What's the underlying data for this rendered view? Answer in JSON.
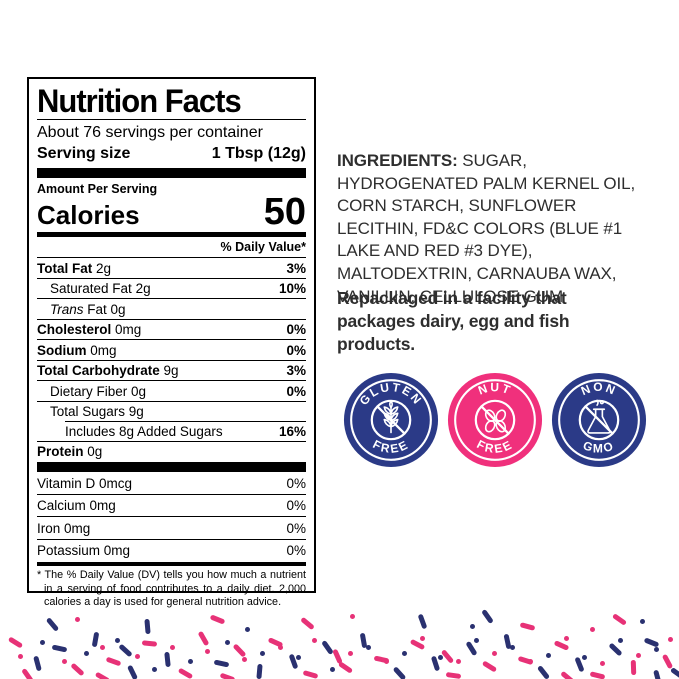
{
  "label": {
    "title": "Nutrition Facts",
    "servings_per_container": "About 76 servings per container",
    "serving_size_label": "Serving size",
    "serving_size_value": "1 Tbsp (12g)",
    "amount_per_serving": "Amount Per Serving",
    "calories_label": "Calories",
    "calories_value": "50",
    "daily_value_header": "% Daily Value*",
    "rows": [
      {
        "n": "Total Fat",
        "a": "2g",
        "d": "3%",
        "b": true,
        "db": true,
        "i": 0
      },
      {
        "n": "Saturated Fat",
        "a": "2g",
        "d": "10%",
        "b": false,
        "db": true,
        "i": 1
      },
      {
        "it": "Trans",
        "n": " Fat",
        "a": "0g",
        "d": "",
        "b": false,
        "db": false,
        "i": 1
      },
      {
        "n": "Cholesterol",
        "a": "0mg",
        "d": "0%",
        "b": true,
        "db": true,
        "i": 0
      },
      {
        "n": "Sodium",
        "a": "0mg",
        "d": "0%",
        "b": true,
        "db": true,
        "i": 0
      },
      {
        "n": "Total Carbohydrate",
        "a": "9g",
        "d": "3%",
        "b": true,
        "db": true,
        "i": 0
      },
      {
        "n": "Dietary Fiber",
        "a": "0g",
        "d": "0%",
        "b": false,
        "db": true,
        "i": 1
      },
      {
        "n": "Total Sugars",
        "a": "9g",
        "d": "",
        "b": false,
        "db": false,
        "i": 1
      },
      {
        "n": "Includes 8g Added Sugars",
        "a": "",
        "d": "16%",
        "b": false,
        "db": true,
        "i": 2,
        "inset": true
      },
      {
        "n": "Protein",
        "a": "0g",
        "d": "",
        "b": true,
        "db": false,
        "i": 0
      }
    ],
    "vitamin_rows": [
      {
        "n": "Vitamin D",
        "a": "0mcg",
        "d": "0%"
      },
      {
        "n": "Calcium",
        "a": "0mg",
        "d": "0%"
      },
      {
        "n": "Iron",
        "a": "0mg",
        "d": "0%"
      },
      {
        "n": "Potassium",
        "a": "0mg",
        "d": "0%"
      }
    ],
    "footnote": "* The % Daily Value (DV) tells you how much a nutrient in a serving of food contributes to a daily diet. 2,000 calories a day is used for general nutrition advice."
  },
  "ingredients": {
    "label": "INGREDIENTS:",
    "text": " SUGAR, HYDROGENATED PALM KERNEL OIL, CORN STARCH, SUNFLOWER LECITHIN, FD&C COLORS (BLUE #1 LAKE AND RED #3 DYE), MALTODEXTRIN, CARNAUBA WAX, VANILLIN, CELLULOSE GUM",
    "repackaged": "Repackaged in a facility that packages dairy, egg and fish products."
  },
  "badges": [
    {
      "name": "gluten-free",
      "top": "GLUTEN",
      "bottom": "FREE",
      "color": "#2b3a87"
    },
    {
      "name": "nut-free",
      "top": "NUT",
      "bottom": "FREE",
      "color": "#f0307c"
    },
    {
      "name": "non-gmo",
      "top": "NON",
      "bottom": "GMO",
      "color": "#2b3a87"
    }
  ],
  "decor": {
    "colors": [
      "#e73277",
      "#2a3170"
    ],
    "sprinkles": {
      "bars": [
        [
          8,
          640,
          32,
          0
        ],
        [
          30,
          661,
          75,
          1
        ],
        [
          52,
          646,
          12,
          1
        ],
        [
          70,
          667,
          42,
          0
        ],
        [
          88,
          637,
          100,
          1
        ],
        [
          106,
          659,
          20,
          0
        ],
        [
          125,
          670,
          64,
          1
        ],
        [
          142,
          641,
          6,
          0
        ],
        [
          160,
          657,
          84,
          1
        ],
        [
          178,
          671,
          30,
          0
        ],
        [
          196,
          636,
          60,
          0
        ],
        [
          214,
          661,
          12,
          1
        ],
        [
          232,
          648,
          46,
          0
        ],
        [
          252,
          669,
          95,
          1
        ],
        [
          268,
          640,
          24,
          0
        ],
        [
          286,
          659,
          70,
          1
        ],
        [
          303,
          672,
          16,
          0
        ],
        [
          320,
          645,
          55,
          1
        ],
        [
          338,
          665,
          34,
          0
        ],
        [
          356,
          638,
          80,
          1
        ],
        [
          374,
          657,
          12,
          0
        ],
        [
          392,
          671,
          48,
          1
        ],
        [
          410,
          642,
          28,
          0
        ],
        [
          428,
          661,
          72,
          1
        ],
        [
          446,
          673,
          8,
          0
        ],
        [
          464,
          646,
          58,
          1
        ],
        [
          482,
          664,
          32,
          0
        ],
        [
          500,
          639,
          78,
          1
        ],
        [
          518,
          658,
          18,
          0
        ],
        [
          536,
          670,
          52,
          1
        ],
        [
          554,
          643,
          24,
          0
        ],
        [
          572,
          662,
          68,
          1
        ],
        [
          590,
          673,
          14,
          0
        ],
        [
          608,
          647,
          44,
          1
        ],
        [
          626,
          665,
          88,
          0
        ],
        [
          644,
          640,
          22,
          1
        ],
        [
          660,
          659,
          62,
          0
        ],
        [
          670,
          671,
          36,
          1
        ],
        [
          20,
          673,
          55,
          0
        ],
        [
          118,
          648,
          42,
          1
        ],
        [
          220,
          675,
          20,
          0
        ],
        [
          330,
          654,
          66,
          0
        ],
        [
          440,
          654,
          50,
          0
        ],
        [
          560,
          675,
          40,
          0
        ],
        [
          650,
          675,
          75,
          1
        ],
        [
          95,
          675,
          30,
          0
        ],
        [
          45,
          622,
          50,
          1
        ],
        [
          210,
          617,
          22,
          0
        ],
        [
          415,
          619,
          70,
          1
        ],
        [
          612,
          617,
          35,
          0
        ],
        [
          520,
          624,
          15,
          0
        ],
        [
          140,
          624,
          85,
          1
        ],
        [
          300,
          621,
          40,
          0
        ],
        [
          480,
          614,
          55,
          1
        ]
      ],
      "dots": [
        [
          18,
          654,
          0
        ],
        [
          40,
          640,
          1
        ],
        [
          62,
          659,
          0
        ],
        [
          84,
          651,
          1
        ],
        [
          100,
          645,
          0
        ],
        [
          115,
          638,
          1
        ],
        [
          135,
          654,
          0
        ],
        [
          152,
          667,
          1
        ],
        [
          170,
          645,
          0
        ],
        [
          188,
          659,
          1
        ],
        [
          205,
          649,
          0
        ],
        [
          225,
          640,
          1
        ],
        [
          242,
          657,
          0
        ],
        [
          260,
          651,
          1
        ],
        [
          278,
          645,
          0
        ],
        [
          296,
          655,
          1
        ],
        [
          312,
          638,
          0
        ],
        [
          330,
          667,
          1
        ],
        [
          348,
          651,
          0
        ],
        [
          366,
          645,
          1
        ],
        [
          384,
          659,
          0
        ],
        [
          402,
          651,
          1
        ],
        [
          420,
          636,
          0
        ],
        [
          438,
          655,
          1
        ],
        [
          456,
          659,
          0
        ],
        [
          474,
          638,
          1
        ],
        [
          492,
          651,
          0
        ],
        [
          510,
          645,
          1
        ],
        [
          528,
          659,
          0
        ],
        [
          546,
          653,
          1
        ],
        [
          564,
          636,
          0
        ],
        [
          582,
          655,
          1
        ],
        [
          600,
          661,
          0
        ],
        [
          618,
          638,
          1
        ],
        [
          636,
          653,
          0
        ],
        [
          654,
          647,
          1
        ],
        [
          668,
          637,
          0
        ],
        [
          75,
          617,
          0
        ],
        [
          245,
          627,
          1
        ],
        [
          350,
          614,
          0
        ],
        [
          470,
          624,
          1
        ],
        [
          590,
          627,
          0
        ],
        [
          640,
          619,
          1
        ]
      ]
    }
  }
}
